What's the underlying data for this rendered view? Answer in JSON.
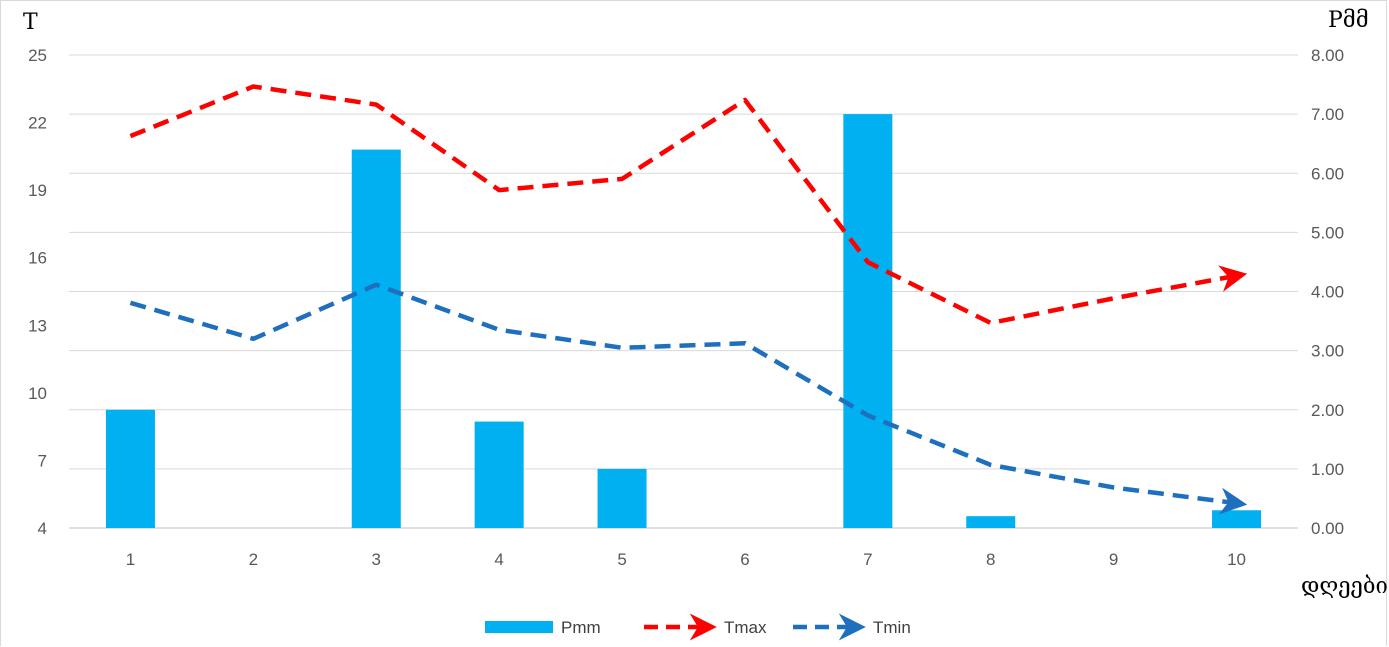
{
  "chart_data": {
    "type": "bar",
    "title": "",
    "categories": [
      "1",
      "2",
      "3",
      "4",
      "5",
      "6",
      "7",
      "8",
      "9",
      "10"
    ],
    "xlabel": "დღეები",
    "ylabel_left": "T",
    "ylabel_right": "Pმმ",
    "left_axis": {
      "min": 4,
      "max": 25,
      "ticks": [
        4,
        7,
        10,
        13,
        16,
        19,
        22,
        25
      ]
    },
    "right_axis": {
      "min": 0,
      "max": 8,
      "ticks": [
        "0.00",
        "1.00",
        "2.00",
        "3.00",
        "4.00",
        "5.00",
        "6.00",
        "7.00",
        "8.00"
      ]
    },
    "grid": true,
    "legend_position": "bottom",
    "series": [
      {
        "name": "Pmm",
        "kind": "bar",
        "axis": "right",
        "color": "#00b0f0",
        "values": [
          2.0,
          0,
          6.4,
          1.8,
          1.0,
          0,
          7.0,
          0.2,
          0,
          0.3
        ]
      },
      {
        "name": "Tmax",
        "kind": "line",
        "axis": "left",
        "color": "#ff0000",
        "values": [
          21.4,
          23.6,
          22.8,
          19.0,
          19.5,
          23.0,
          15.8,
          13.1,
          14.2,
          15.2
        ]
      },
      {
        "name": "Tmin",
        "kind": "line",
        "axis": "left",
        "color": "#1f6fbf",
        "values": [
          14.0,
          12.4,
          14.8,
          12.8,
          12.0,
          12.2,
          9.0,
          6.8,
          5.8,
          5.1
        ]
      }
    ]
  }
}
